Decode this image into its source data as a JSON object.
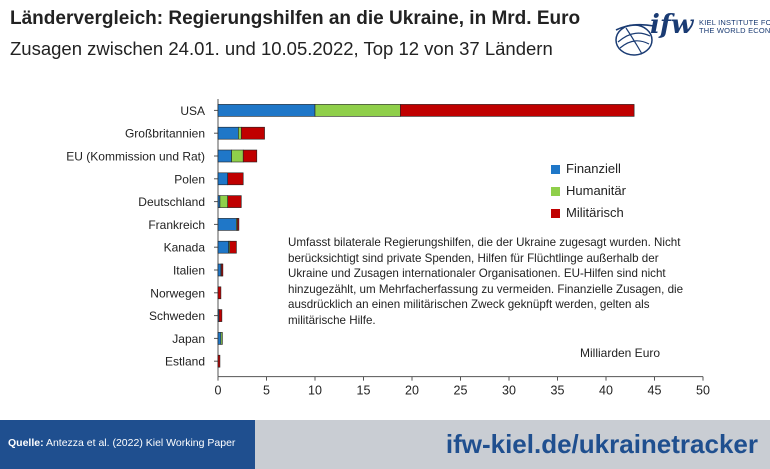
{
  "header": {
    "title": "Ländervergleich: Regierungshilfen an die Ukraine, in Mrd. Euro",
    "subtitle": "Zusagen zwischen 24.01. und 10.05.2022, Top 12 von 37 Ländern"
  },
  "logo": {
    "wordmark": "ifw",
    "line1": "KIEL INSTITUTE FOR",
    "line2": "THE WORLD ECONOMY"
  },
  "colors": {
    "finanziell": "#1f77c8",
    "humanitaer": "#8fcf4a",
    "militaerisch": "#c00000",
    "footer_dark": "#1f4f8f",
    "footer_light": "#c9cdd3"
  },
  "chart_data": {
    "type": "bar",
    "orientation": "horizontal",
    "stacked": true,
    "categories": [
      "USA",
      "Großbritannien",
      "EU (Kommission und Rat)",
      "Polen",
      "Deutschland",
      "Frankreich",
      "Kanada",
      "Italien",
      "Norwegen",
      "Schweden",
      "Japan",
      "Estland"
    ],
    "series": [
      {
        "name": "Finanziell",
        "color": "#1f77c8",
        "values": [
          10.0,
          2.1,
          1.4,
          1.0,
          0.2,
          1.9,
          1.1,
          0.3,
          0.0,
          0.1,
          0.3,
          0.0
        ]
      },
      {
        "name": "Humanitär",
        "color": "#8fcf4a",
        "values": [
          8.8,
          0.3,
          1.2,
          0.0,
          0.8,
          0.1,
          0.1,
          0.05,
          0.0,
          0.0,
          0.05,
          0.0
        ]
      },
      {
        "name": "Militärisch",
        "color": "#c00000",
        "values": [
          24.1,
          2.4,
          1.4,
          1.6,
          1.4,
          0.1,
          0.7,
          0.1,
          0.3,
          0.3,
          0.0,
          0.2
        ]
      }
    ],
    "xlim": [
      0,
      50
    ],
    "xticks": [
      "0",
      "5",
      "10",
      "15",
      "20",
      "25",
      "30",
      "35",
      "40",
      "45",
      "50"
    ],
    "xlabel": "Milliarden Euro",
    "legend": [
      "Finanziell",
      "Humanitär",
      "Militärisch"
    ],
    "legend_position": "right",
    "grid": false,
    "annotation": "Umfasst bilaterale Regierungshilfen, die der Ukraine zugesagt wurden. Nicht berücksichtigt sind private Spenden, Hilfen für Flüchtlinge außerhalb der Ukraine und Zusagen internationaler Organisationen. EU-Hilfen sind nicht hinzugezählt, um Mehrfacherfassung zu vermeiden. Finanzielle Zusagen, die ausdrücklich an einen militärischen Zweck geknüpft werden, gelten als militärische Hilfe."
  },
  "footer": {
    "source_label": "Quelle:",
    "source_text": "Antezza et al. (2022) Kiel Working Paper",
    "url": "ifw-kiel.de/ukrainetracker"
  }
}
